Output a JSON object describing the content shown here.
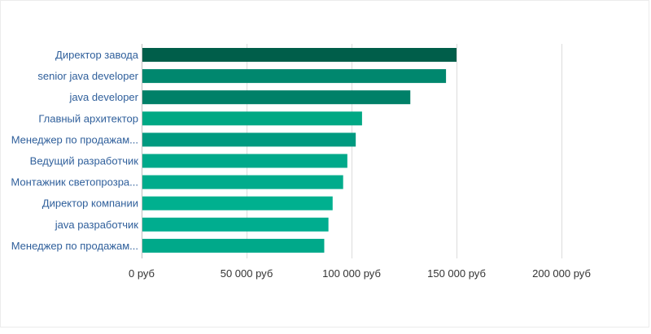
{
  "chart_data": {
    "type": "bar",
    "orientation": "horizontal",
    "categories": [
      "Директор завода",
      "senior java developer",
      "java developer",
      "Главный архитектор",
      "Менеджер по продажам...",
      "Ведущий разработчик",
      "Монтажник светопрозра...",
      "Директор компании",
      "java разработчик",
      "Менеджер по продажам..."
    ],
    "values": [
      150000,
      145000,
      128000,
      105000,
      102000,
      98000,
      96000,
      91000,
      89000,
      87000
    ],
    "colors": [
      "#005e4a",
      "#00876e",
      "#008068",
      "#00a884",
      "#009a80",
      "#00a98a",
      "#00ac8c",
      "#00b08f",
      "#00ad8f",
      "#00a98a"
    ],
    "xlim": [
      0,
      200000
    ],
    "xticks": [
      0,
      50000,
      100000,
      150000,
      200000
    ],
    "xtick_labels": [
      "0 руб",
      "50 000 руб",
      "100 000 руб",
      "150 000 руб",
      "200 000 руб"
    ],
    "grid": "vertical",
    "title": "",
    "xlabel": "",
    "ylabel": ""
  }
}
